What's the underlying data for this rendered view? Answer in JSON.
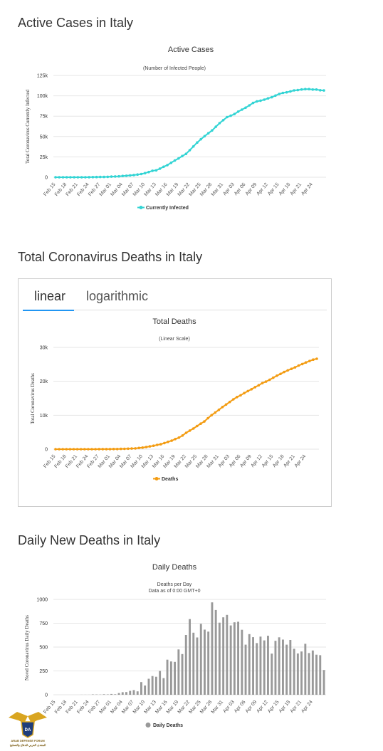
{
  "sections": {
    "active_title": "Active Cases in Italy",
    "deaths_title": "Total Coronavirus Deaths in Italy",
    "daily_title": "Daily New Deaths in Italy"
  },
  "tabs": {
    "linear": "linear",
    "logarithmic": "logarithmic"
  },
  "logo": {
    "line1": "ARAB DEFENSE FORUM",
    "line2": "المنتدى العربي للدفاع والتسليح"
  },
  "colors": {
    "active": "#33d4d4",
    "deaths": "#f39c12",
    "daily": "#999999"
  },
  "chart_data": [
    {
      "type": "line",
      "title": "Active Cases",
      "subtitle": "(Number of Infected People)",
      "ylabel": "Total Coronavirus Currently Infected",
      "xlabel": "",
      "legend": "Currently Infected",
      "legend_position": "bottom",
      "grid": true,
      "ylim": [
        0,
        125000
      ],
      "yticks": [
        "0",
        "25k",
        "50k",
        "75k",
        "100k",
        "125k"
      ],
      "ytick_values": [
        0,
        25000,
        50000,
        75000,
        100000,
        125000
      ],
      "xticks": [
        "Feb 15",
        "Feb 18",
        "Feb 21",
        "Feb 24",
        "Feb 27",
        "Mar 01",
        "Mar 04",
        "Mar 07",
        "Mar 10",
        "Mar 13",
        "Mar 16",
        "Mar 19",
        "Mar 22",
        "Mar 25",
        "Mar 28",
        "Mar 31",
        "Apr 03",
        "Apr 06",
        "Apr 09",
        "Apr 12",
        "Apr 15",
        "Apr 18",
        "Apr 21",
        "Apr 24"
      ],
      "values": [
        3,
        3,
        3,
        3,
        3,
        3,
        3,
        3,
        17,
        76,
        150,
        219,
        311,
        389,
        528,
        801,
        984,
        1135,
        1577,
        1835,
        2263,
        2706,
        3296,
        3916,
        5061,
        6387,
        7985,
        8514,
        10590,
        12839,
        14955,
        17750,
        20603,
        23073,
        26062,
        28710,
        33190,
        37860,
        42681,
        46638,
        50418,
        54030,
        57521,
        62013,
        66414,
        70065,
        73880,
        75528,
        77635,
        80572,
        83049,
        85388,
        88274,
        91246,
        93187,
        94067,
        95262,
        96877,
        98273,
        100269,
        102253,
        103616,
        104291,
        105418,
        106607,
        106962,
        107771,
        108257,
        108237,
        107709,
        107699,
        106848,
        106527
      ]
    },
    {
      "type": "line",
      "title": "Total Deaths",
      "subtitle": "(Linear Scale)",
      "ylabel": "Total Coronavirus Deaths",
      "xlabel": "",
      "legend": "Deaths",
      "legend_position": "bottom",
      "grid": true,
      "ylim": [
        0,
        30000
      ],
      "yticks": [
        "0",
        "10k",
        "20k",
        "30k"
      ],
      "ytick_values": [
        0,
        10000,
        20000,
        30000
      ],
      "xticks": [
        "Feb 15",
        "Feb 18",
        "Feb 21",
        "Feb 24",
        "Feb 27",
        "Mar 01",
        "Mar 04",
        "Mar 07",
        "Mar 10",
        "Mar 13",
        "Mar 16",
        "Mar 19",
        "Mar 22",
        "Mar 25",
        "Mar 28",
        "Mar 31",
        "Apr 03",
        "Apr 06",
        "Apr 09",
        "Apr 12",
        "Apr 15",
        "Apr 18",
        "Apr 21",
        "Apr 24"
      ],
      "values": [
        0,
        0,
        0,
        0,
        0,
        0,
        0,
        1,
        2,
        3,
        7,
        10,
        12,
        17,
        21,
        29,
        34,
        52,
        79,
        107,
        148,
        197,
        233,
        366,
        463,
        631,
        827,
        1016,
        1266,
        1441,
        1809,
        2158,
        2503,
        2978,
        3405,
        4032,
        4825,
        5476,
        6077,
        6820,
        7503,
        8165,
        9134,
        10023,
        10779,
        11591,
        12428,
        13155,
        13915,
        14681,
        15362,
        15887,
        16523,
        17127,
        17669,
        18279,
        18849,
        19468,
        19899,
        20465,
        21067,
        21645,
        22170,
        22745,
        23227,
        23660,
        24114,
        24648,
        25085,
        25549,
        25969,
        26384,
        26644
      ]
    },
    {
      "type": "bar",
      "title": "Daily Deaths",
      "subtitle": "Deaths per Day",
      "subtitle2": "Data as of 0:00 GMT+0",
      "ylabel": "Novel Coronavirus Daily Deaths",
      "xlabel": "",
      "legend": "Daily Deaths",
      "legend_position": "bottom",
      "grid": true,
      "ylim": [
        0,
        1000
      ],
      "yticks": [
        "0",
        "250",
        "500",
        "750",
        "1000"
      ],
      "ytick_values": [
        0,
        250,
        500,
        750,
        1000
      ],
      "xticks": [
        "Feb 15",
        "Feb 18",
        "Feb 21",
        "Feb 24",
        "Feb 27",
        "Mar 01",
        "Mar 04",
        "Mar 07",
        "Mar 10",
        "Mar 13",
        "Mar 16",
        "Mar 19",
        "Mar 22",
        "Mar 25",
        "Mar 28",
        "Mar 31",
        "Apr 03",
        "Apr 06",
        "Apr 09",
        "Apr 12",
        "Apr 15",
        "Apr 18",
        "Apr 21",
        "Apr 24"
      ],
      "values": [
        0,
        0,
        0,
        0,
        0,
        0,
        0,
        1,
        1,
        1,
        4,
        3,
        2,
        5,
        4,
        8,
        5,
        18,
        27,
        28,
        41,
        49,
        36,
        133,
        97,
        168,
        196,
        189,
        250,
        175,
        368,
        349,
        345,
        475,
        427,
        627,
        793,
        651,
        601,
        743,
        683,
        662,
        969,
        889,
        756,
        812,
        837,
        727,
        760,
        766,
        681,
        525,
        636,
        604,
        542,
        610,
        570,
        619,
        431,
        566,
        602,
        578,
        525,
        575,
        482,
        433,
        454,
        534,
        437,
        464,
        420,
        415,
        260
      ]
    }
  ]
}
